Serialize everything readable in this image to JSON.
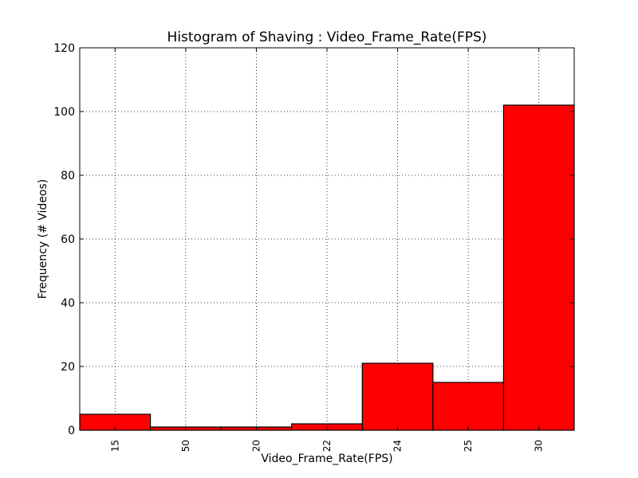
{
  "chart_data": {
    "type": "bar",
    "title": "Histogram of Shaving : Video_Frame_Rate(FPS)",
    "xlabel": "Video_Frame_Rate(FPS)",
    "ylabel": "Frequency (# Videos)",
    "categories": [
      "15",
      "50",
      "20",
      "22",
      "24",
      "25",
      "30"
    ],
    "values": [
      5,
      1,
      1,
      2,
      21,
      15,
      102
    ],
    "ylim": [
      0,
      120
    ],
    "yticks": [
      "0",
      "20",
      "40",
      "60",
      "80",
      "100",
      "120"
    ],
    "grid": true,
    "bar_color": "#ff0000",
    "edge_color": "#000000"
  }
}
